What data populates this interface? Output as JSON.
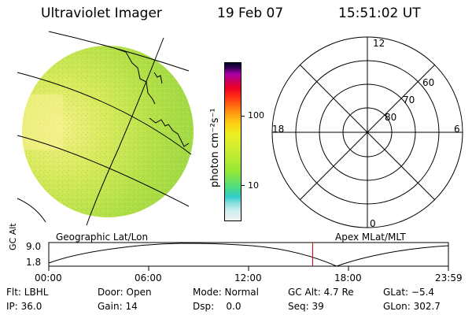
{
  "header": {
    "title": "Ultraviolet Imager",
    "date": "19 Feb 07",
    "time": "15:51:02 UT"
  },
  "colorbar": {
    "unit_label": "photon cm⁻²s⁻¹",
    "ticks": [
      "100",
      "10"
    ]
  },
  "polar_plot": {
    "mlt_labels": {
      "top": "12",
      "left": "18",
      "right": "6",
      "bottom": "0"
    },
    "lat_labels": [
      "60",
      "70",
      "80"
    ]
  },
  "projection_labels": {
    "left": "Geographic Lat/Lon",
    "right": "Apex MLat/MLT"
  },
  "altitude_track": {
    "ylabel": "GC Alt",
    "y_ticks": [
      "9.0",
      "1.8"
    ],
    "x_ticks": [
      "00:00",
      "06:00",
      "12:00",
      "18:00",
      "23:59"
    ],
    "marker_time": "15:51",
    "marker_color": "#e00000"
  },
  "status": {
    "row1": [
      "Flt: LBHL",
      "Door: Open",
      "Mode: Normal",
      "GC Alt: 4.7 Re",
      "GLat: −5.4"
    ],
    "row2": [
      "IP: 36.0",
      "Gain: 14",
      "Dsp:    0.0",
      "Seq: 39",
      "GLon: 302.7"
    ]
  },
  "colors": {
    "disk_main": "#b8e34a",
    "disk_highlight": "#f3ee7c",
    "track_line": "#000000"
  }
}
